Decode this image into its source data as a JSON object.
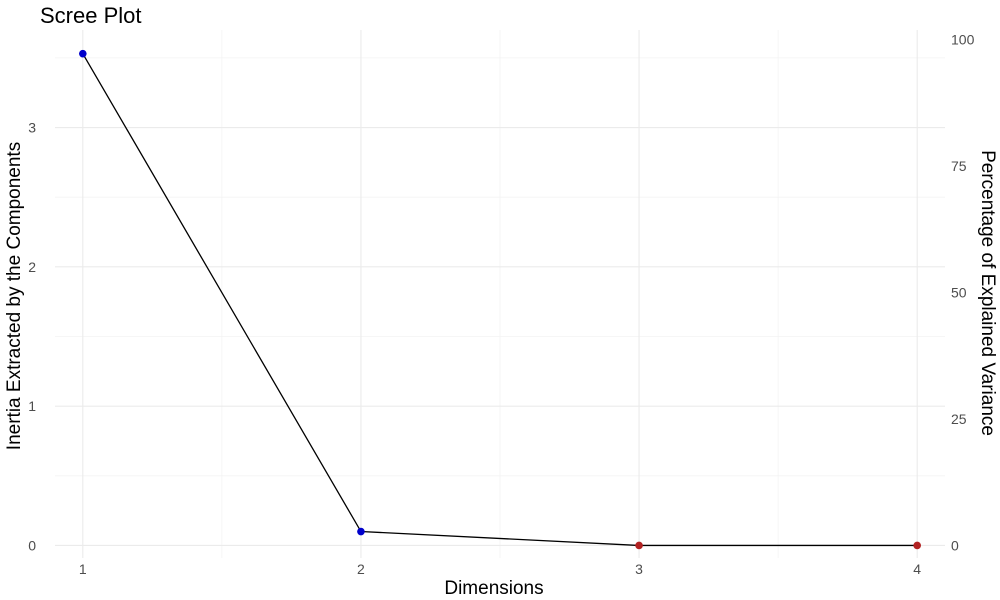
{
  "chart_data": {
    "type": "line",
    "title": "Scree Plot",
    "xlabel": "Dimensions",
    "ylabel": "Inertia Extracted by the Components",
    "y2label": "Percentage of Explained Variance",
    "x": [
      1,
      2,
      3,
      4
    ],
    "xticks": [
      "1",
      "2",
      "3",
      "4"
    ],
    "xlim": [
      0.9,
      4.1
    ],
    "ylim": [
      -0.09,
      3.7
    ],
    "yticks": [
      0,
      1,
      2,
      3
    ],
    "y2ticks": [
      0,
      25,
      50,
      75,
      100
    ],
    "series": [
      {
        "values": [
          3.53,
          0.1,
          0.0,
          0.0
        ],
        "percent": [
          97.2,
          2.8,
          0.0,
          0.0
        ],
        "point_colors": [
          "#0000cc",
          "#0000cc",
          "#b22222",
          "#b22222"
        ],
        "line_color": "#000000"
      }
    ],
    "grid": true,
    "legend": "none"
  }
}
